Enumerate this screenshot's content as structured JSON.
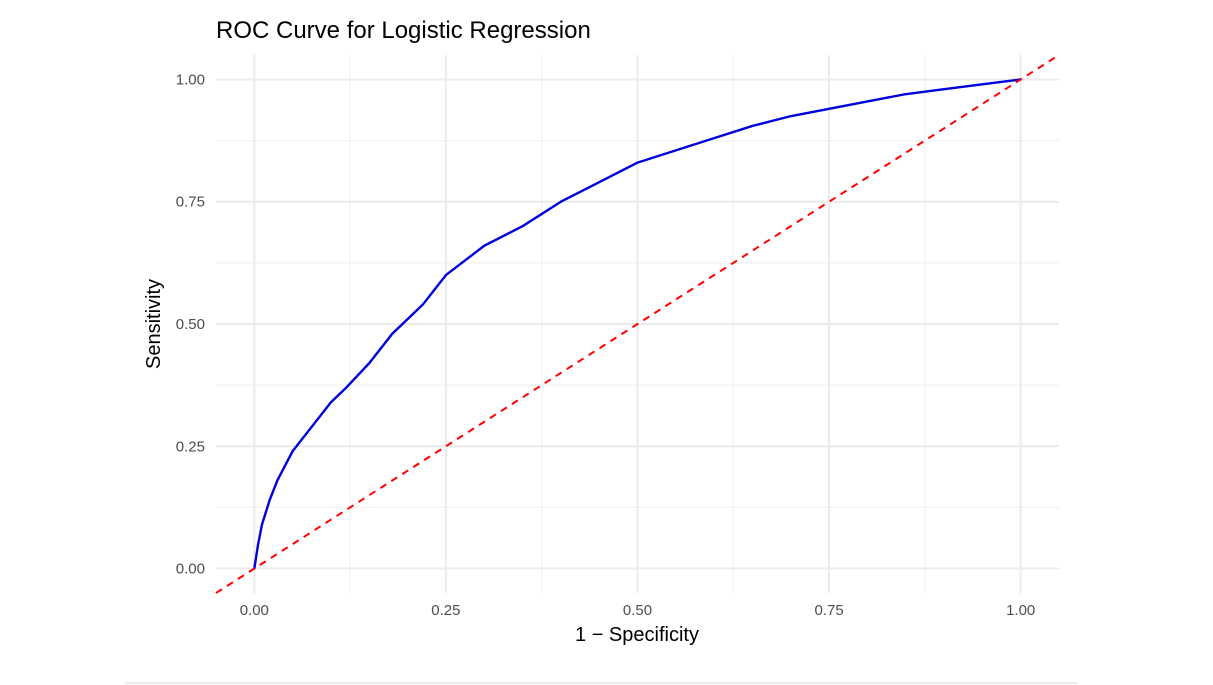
{
  "chart_data": {
    "type": "line",
    "title": "ROC Curve for Logistic Regression",
    "xlabel": "1 − Specificity",
    "ylabel": "Sensitivity",
    "xlim": [
      -0.05,
      1.05
    ],
    "ylim": [
      -0.05,
      1.05
    ],
    "x_ticks": [
      0,
      0.25,
      0.5,
      0.75,
      1
    ],
    "x_tick_labels": [
      "0.00",
      "0.25",
      "0.50",
      "0.75",
      "1.00"
    ],
    "y_ticks": [
      0,
      0.25,
      0.5,
      0.75,
      1
    ],
    "y_tick_labels": [
      "0.00",
      "0.25",
      "0.50",
      "0.75",
      "1.00"
    ],
    "grid": true,
    "series": [
      {
        "color": "#0000dd",
        "x": [
          0,
          0.005,
          0.01,
          0.02,
          0.03,
          0.04,
          0.05,
          0.06,
          0.08,
          0.1,
          0.12,
          0.15,
          0.18,
          0.2,
          0.22,
          0.25,
          0.3,
          0.35,
          0.4,
          0.45,
          0.5,
          0.55,
          0.6,
          0.65,
          0.7,
          0.75,
          0.8,
          0.85,
          0.9,
          0.95,
          1.0
        ],
        "y": [
          0,
          0.05,
          0.09,
          0.14,
          0.18,
          0.21,
          0.24,
          0.26,
          0.3,
          0.34,
          0.37,
          0.42,
          0.48,
          0.51,
          0.54,
          0.6,
          0.66,
          0.7,
          0.75,
          0.79,
          0.83,
          0.855,
          0.88,
          0.905,
          0.925,
          0.94,
          0.955,
          0.97,
          0.98,
          0.99,
          1.0
        ]
      },
      {
        "color": "#ff0000",
        "style": "dashed",
        "x": [
          -0.05,
          1.05
        ],
        "y": [
          -0.05,
          1.05
        ]
      }
    ]
  }
}
